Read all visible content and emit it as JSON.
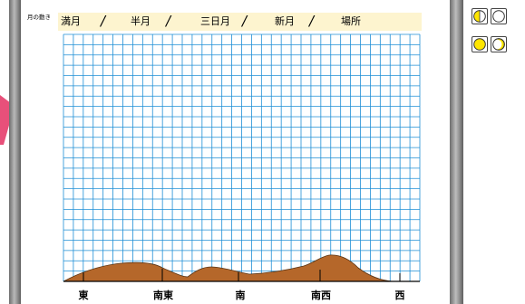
{
  "worksheet": {
    "title_label": "月の動き",
    "fields": [
      {
        "label": "満月",
        "value": ""
      },
      {
        "label": "半月",
        "value": ""
      },
      {
        "label": "三日月",
        "value": ""
      },
      {
        "label": "新月",
        "value": ""
      },
      {
        "label": "場所",
        "value": ""
      }
    ],
    "separator": "/",
    "directions": [
      "東",
      "南東",
      "南",
      "南西",
      "西"
    ]
  },
  "tools": {
    "moon_buttons": [
      {
        "icon": "half-moon-icon"
      },
      {
        "icon": "new-moon-icon"
      },
      {
        "icon": "full-moon-icon"
      },
      {
        "icon": "crescent-moon-icon"
      }
    ]
  },
  "colors": {
    "grid_line": "#1f8fd6",
    "field_background": "#fdf4cf",
    "mountain": "#b5672a",
    "moon_yellow": "#ffe600",
    "arrow": "#e8507a"
  }
}
